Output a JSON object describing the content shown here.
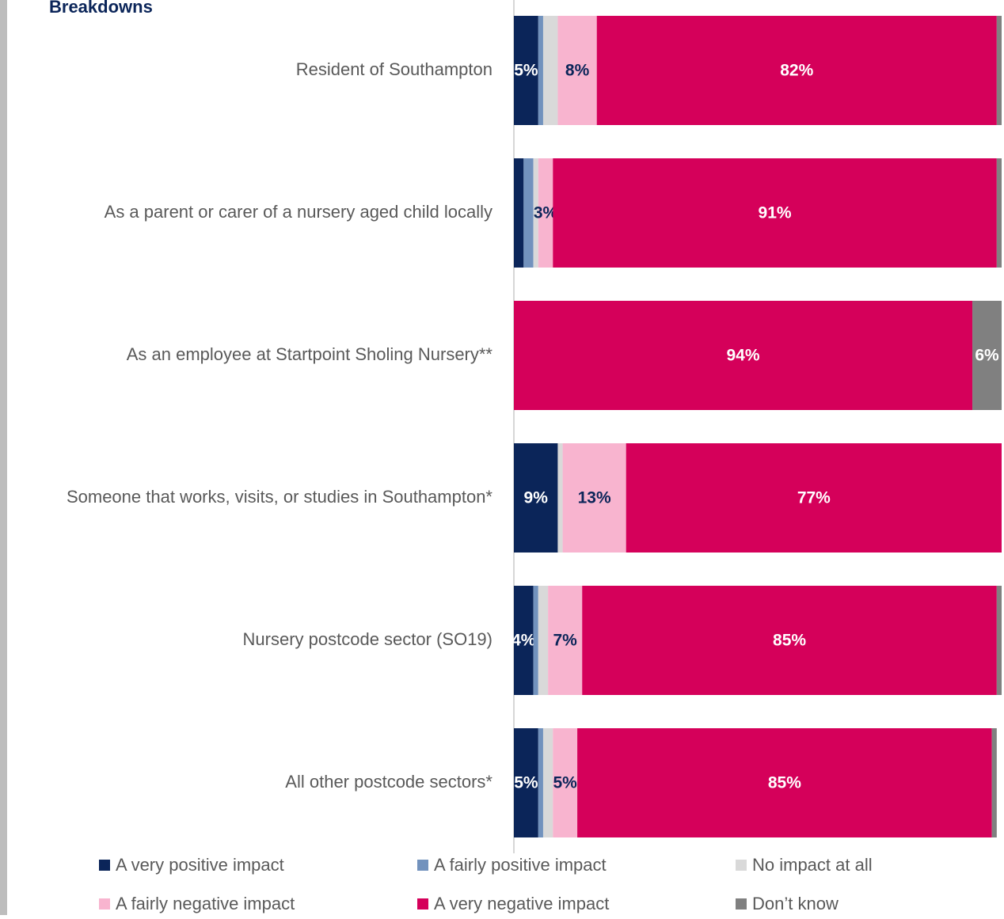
{
  "chart_data": {
    "type": "stacked_bar_horizontal",
    "title": "Breakdowns",
    "categories": [
      "Resident of Southampton",
      "As a parent or carer of a nursery aged child locally",
      "As an employee at Startpoint Sholing Nursery**",
      "Someone that works, visits, or studies in Southampton*",
      "Nursery postcode sector (SO19)",
      "All other postcode sectors*"
    ],
    "xlim": [
      0,
      100
    ],
    "series": [
      {
        "name": "A very positive impact",
        "color": "#0b2559",
        "label_color": "#ffffff",
        "values": [
          5,
          2,
          0,
          9,
          4,
          5
        ],
        "value_labels": [
          "5%",
          null,
          null,
          "9%",
          "4%",
          "5%"
        ]
      },
      {
        "name": "A fairly positive impact",
        "color": "#7292bd",
        "label_color": "#0b2559",
        "values": [
          1,
          2,
          0,
          0,
          1,
          1
        ],
        "value_labels": [
          null,
          null,
          null,
          null,
          null,
          null
        ]
      },
      {
        "name": "No impact at all",
        "color": "#d9d9d9",
        "label_color": "#0b2559",
        "values": [
          3,
          1,
          0,
          1,
          2,
          2
        ],
        "value_labels": [
          null,
          null,
          null,
          null,
          null,
          null
        ]
      },
      {
        "name": "A fairly negative impact",
        "color": "#f8b4cf",
        "label_color": "#0b2559",
        "values": [
          8,
          3,
          0,
          13,
          7,
          5
        ],
        "value_labels": [
          "8%",
          "3%",
          null,
          "13%",
          "7%",
          "5%"
        ]
      },
      {
        "name": "A very negative impact",
        "color": "#d5005a",
        "label_color": "#ffffff",
        "values": [
          82,
          91,
          94,
          77,
          85,
          85
        ],
        "value_labels": [
          "82%",
          "91%",
          "94%",
          "77%",
          "85%",
          "85%"
        ]
      },
      {
        "name": "Don’t know",
        "color": "#808080",
        "label_color": "#ffffff",
        "values": [
          1,
          1,
          6,
          0,
          1,
          1
        ],
        "value_labels": [
          null,
          null,
          "6%",
          null,
          null,
          null
        ]
      }
    ]
  }
}
